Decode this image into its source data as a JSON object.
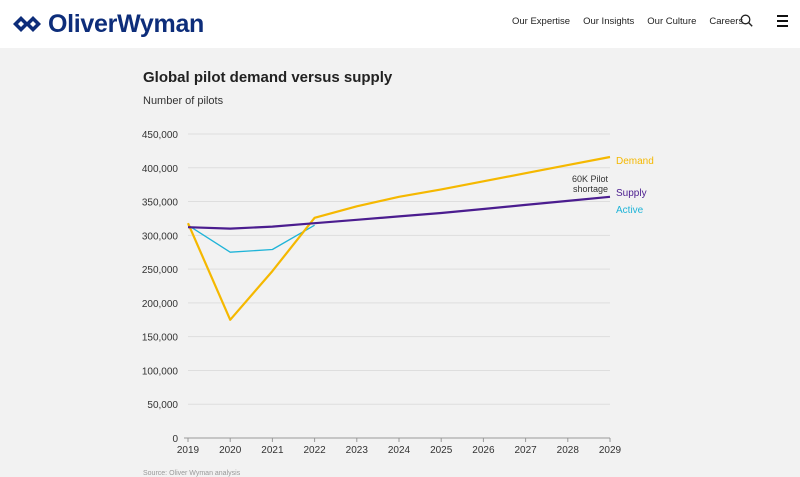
{
  "header": {
    "logo_text": "OliverWyman",
    "brand_color": "#0d2d7a",
    "nav": [
      "Our Expertise",
      "Our Insights",
      "Our Culture",
      "Careers"
    ],
    "icons": [
      "search-icon",
      "menu-icon"
    ]
  },
  "chart_data": {
    "type": "line",
    "title": "Global pilot demand versus supply",
    "subtitle": "Number of pilots",
    "x": [
      2019,
      2020,
      2021,
      2022,
      2023,
      2024,
      2025,
      2026,
      2027,
      2028,
      2029
    ],
    "xticks": [
      "2019",
      "2020",
      "2021",
      "2022",
      "2023",
      "2024",
      "2025",
      "2026",
      "2027",
      "2028",
      "2029"
    ],
    "ylim": [
      0,
      450000
    ],
    "yticks": [
      "0",
      "50,000",
      "100,000",
      "150,000",
      "200,000",
      "250,000",
      "300,000",
      "350,000",
      "400,000",
      "450,000"
    ],
    "ytick_values": [
      0,
      50000,
      100000,
      150000,
      200000,
      250000,
      300000,
      350000,
      400000,
      450000
    ],
    "grid": true,
    "series": [
      {
        "name": "Demand",
        "color": "#f5b800",
        "x": [
          2019,
          2020,
          2021,
          2022,
          2023,
          2024,
          2025,
          2026,
          2027,
          2028,
          2029
        ],
        "values": [
          318000,
          175000,
          247000,
          326000,
          343000,
          357000,
          368000,
          380000,
          392000,
          404000,
          416000
        ]
      },
      {
        "name": "Supply",
        "color": "#4b1d8f",
        "x": [
          2019,
          2020,
          2021,
          2022,
          2023,
          2024,
          2025,
          2026,
          2027,
          2028,
          2029
        ],
        "values": [
          312000,
          310000,
          313000,
          318000,
          323000,
          328000,
          333000,
          339000,
          345000,
          351000,
          357000
        ]
      },
      {
        "name": "Active",
        "color": "#1fb4d8",
        "x": [
          2019,
          2020,
          2021,
          2022
        ],
        "values": [
          315000,
          275000,
          279000,
          315000
        ]
      }
    ],
    "annotation": {
      "line1": "60K Pilot",
      "line2": "shortage",
      "x": 2029,
      "y": 375000
    },
    "source": "Source: Oliver Wyman analysis"
  }
}
